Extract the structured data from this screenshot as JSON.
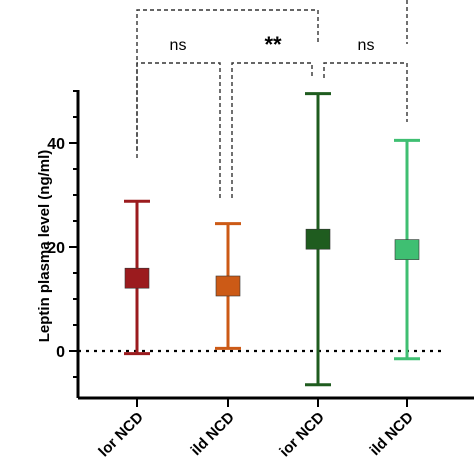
{
  "chart_data": {
    "type": "errorbar",
    "title": "",
    "ylabel": "Leptin plasma level (ng/ml)",
    "xlabel": "",
    "ylim": [
      -10,
      50
    ],
    "yticks": [
      0,
      20,
      40
    ],
    "zero_line": "dotted",
    "categories": [
      "Minor NCD",
      "Mild NCD",
      "Major NCD",
      "Mild NCD"
    ],
    "series": [
      {
        "category": "Minor NCD",
        "mean": 14,
        "lower": -0.5,
        "upper": 28.8,
        "color": "#9b1b1e"
      },
      {
        "category": "Mild NCD",
        "mean": 12.5,
        "lower": 0.5,
        "upper": 24.5,
        "color": "#cc5a16"
      },
      {
        "category": "Major NCD",
        "mean": 21.5,
        "lower": -6.5,
        "upper": 49.5,
        "color": "#1f5c1f"
      },
      {
        "category": "Mild NCD",
        "mean": 19.5,
        "lower": -1.5,
        "upper": 40.5,
        "color": "#3fbf72"
      }
    ],
    "visible_tick_labels": [
      "lor NCD",
      "ild NCD",
      "ior NCD",
      "ild NCD"
    ],
    "comparisons": [
      {
        "groups": [
          0,
          1
        ],
        "label": "ns"
      },
      {
        "groups": [
          1,
          2
        ],
        "label": "**"
      },
      {
        "groups": [
          2,
          3
        ],
        "label": "ns"
      },
      {
        "groups": [
          0,
          2
        ],
        "label": ""
      }
    ]
  }
}
